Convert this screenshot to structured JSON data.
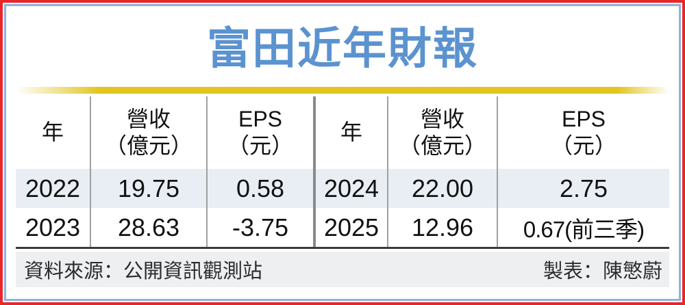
{
  "title": "富田近年財報",
  "table": {
    "left": {
      "header": {
        "year": "年",
        "revenue_line1": "營收",
        "revenue_line2": "（億元）",
        "eps_line1": "EPS",
        "eps_line2": "（元）"
      },
      "rows": [
        {
          "year": "2022",
          "revenue": "19.75",
          "eps": "0.58"
        },
        {
          "year": "2023",
          "revenue": "28.63",
          "eps": "-3.75"
        }
      ]
    },
    "right": {
      "header": {
        "year": "年",
        "revenue_line1": "營收",
        "revenue_line2": "（億元）",
        "eps_line1": "EPS",
        "eps_line2": "（元）"
      },
      "rows": [
        {
          "year": "2024",
          "revenue": "22.00",
          "eps": "2.75"
        },
        {
          "year": "2025",
          "revenue": "12.96",
          "eps": "0.67(前三季)"
        }
      ]
    }
  },
  "footer": {
    "source": "資料來源：公開資訊觀測站",
    "credit": "製表：陳慜蔚"
  },
  "colors": {
    "frame_red": "#e8262c",
    "frame_blue": "#8cb4dc",
    "title_blue": "#5b93d0",
    "gold_bar": "#e2c51f",
    "row_shade": "#e9edf4",
    "footer_bg": "#edeff1"
  },
  "chart_data": {
    "type": "table",
    "title": "富田近年財報",
    "columns": [
      "年",
      "營收（億元）",
      "EPS（元）"
    ],
    "rows": [
      {
        "year": 2022,
        "revenue_100m": 19.75,
        "eps": 0.58
      },
      {
        "year": 2023,
        "revenue_100m": 28.63,
        "eps": -3.75
      },
      {
        "year": 2024,
        "revenue_100m": 22.0,
        "eps": 2.75
      },
      {
        "year": 2025,
        "revenue_100m": 12.96,
        "eps": 0.67,
        "eps_note": "前三季"
      }
    ],
    "source": "公開資訊觀測站",
    "credit": "陳慜蔚"
  }
}
